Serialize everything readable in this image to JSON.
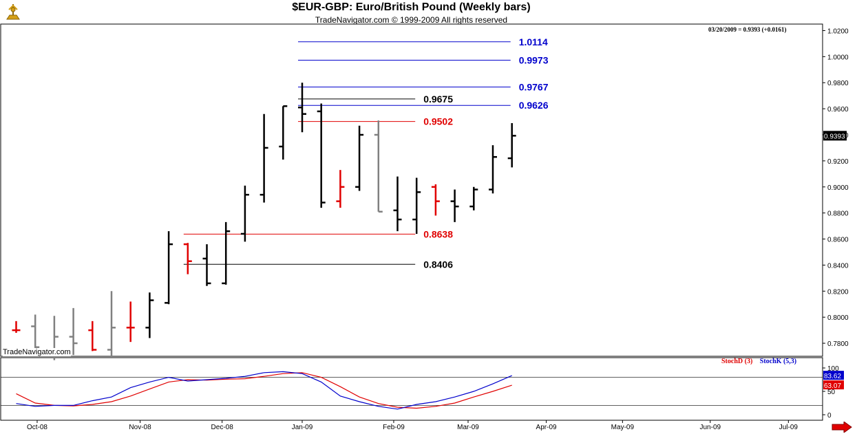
{
  "header": {
    "title": "$EUR-GBP:  Euro/British Pound  (Weekly bars)",
    "subtitle": "TradeNavigator.com © 1999-2009 All rights reserved",
    "quote": "03/20/2009 = 0.9393 (+0.0161)",
    "watermark": "TradeNavigator.com"
  },
  "colors": {
    "up": "#000000",
    "down": "#e00000",
    "neutral": "#808080",
    "blue": "#0000cc",
    "red": "#e00000",
    "black": "#000000"
  },
  "chart_data": [
    {
      "type": "bar",
      "name": "price",
      "ylim": [
        0.77,
        1.025
      ],
      "yticks": [
        "1.0200",
        "1.0000",
        "0.9800",
        "0.9600",
        "0.9400",
        "0.9200",
        "0.9000",
        "0.8800",
        "0.8600",
        "0.8400",
        "0.8200",
        "0.8000",
        "0.7800"
      ],
      "last_label": "0.9393",
      "bars": [
        {
          "h": 0.797,
          "l": 0.788,
          "o": 0.79,
          "c": 0.79,
          "col": "down"
        },
        {
          "h": 0.802,
          "l": 0.772,
          "o": 0.793,
          "c": 0.777,
          "col": "neutral"
        },
        {
          "h": 0.801,
          "l": 0.767,
          "o": 0.772,
          "c": 0.785,
          "col": "neutral"
        },
        {
          "h": 0.807,
          "l": 0.771,
          "o": 0.785,
          "c": 0.78,
          "col": "neutral"
        },
        {
          "h": 0.797,
          "l": 0.774,
          "o": 0.79,
          "c": 0.775,
          "col": "down"
        },
        {
          "h": 0.82,
          "l": 0.77,
          "o": 0.775,
          "c": 0.792,
          "col": "neutral"
        },
        {
          "h": 0.812,
          "l": 0.781,
          "o": 0.792,
          "c": 0.792,
          "col": "down"
        },
        {
          "h": 0.819,
          "l": 0.784,
          "o": 0.792,
          "c": 0.813,
          "col": "up"
        },
        {
          "h": 0.866,
          "l": 0.81,
          "o": 0.811,
          "c": 0.856,
          "col": "up"
        },
        {
          "h": 0.857,
          "l": 0.833,
          "o": 0.856,
          "c": 0.843,
          "col": "down"
        },
        {
          "h": 0.856,
          "l": 0.824,
          "o": 0.845,
          "c": 0.826,
          "col": "up"
        },
        {
          "h": 0.873,
          "l": 0.825,
          "o": 0.826,
          "c": 0.866,
          "col": "up"
        },
        {
          "h": 0.901,
          "l": 0.858,
          "o": 0.864,
          "c": 0.894,
          "col": "up"
        },
        {
          "h": 0.956,
          "l": 0.888,
          "o": 0.894,
          "c": 0.93,
          "col": "up"
        },
        {
          "h": 0.962,
          "l": 0.921,
          "o": 0.931,
          "c": 0.962,
          "col": "up"
        },
        {
          "h": 0.98,
          "l": 0.942,
          "o": 0.961,
          "c": 0.956,
          "col": "up"
        },
        {
          "h": 0.964,
          "l": 0.884,
          "o": 0.958,
          "c": 0.888,
          "col": "up"
        },
        {
          "h": 0.913,
          "l": 0.884,
          "o": 0.889,
          "c": 0.9,
          "col": "down"
        },
        {
          "h": 0.947,
          "l": 0.897,
          "o": 0.9,
          "c": 0.94,
          "col": "up"
        },
        {
          "h": 0.951,
          "l": 0.881,
          "o": 0.94,
          "c": 0.881,
          "col": "neutral"
        },
        {
          "h": 0.908,
          "l": 0.866,
          "o": 0.882,
          "c": 0.875,
          "col": "up"
        },
        {
          "h": 0.907,
          "l": 0.864,
          "o": 0.875,
          "c": 0.896,
          "col": "up"
        },
        {
          "h": 0.902,
          "l": 0.878,
          "o": 0.9,
          "c": 0.889,
          "col": "down"
        },
        {
          "h": 0.898,
          "l": 0.873,
          "o": 0.889,
          "c": 0.885,
          "col": "up"
        },
        {
          "h": 0.9,
          "l": 0.882,
          "o": 0.885,
          "c": 0.898,
          "col": "up"
        },
        {
          "h": 0.932,
          "l": 0.895,
          "o": 0.898,
          "c": 0.923,
          "col": "up"
        },
        {
          "h": 0.949,
          "l": 0.915,
          "o": 0.922,
          "c": 0.9393,
          "col": "up"
        }
      ],
      "levels": [
        {
          "value": "1.0114",
          "v": 1.0114,
          "from_bar": 15.0,
          "to_bar": 26.0,
          "line": "blue",
          "label_col": "blue"
        },
        {
          "value": "0.9973",
          "v": 0.9973,
          "from_bar": 15.0,
          "to_bar": 26.0,
          "line": "blue",
          "label_col": "blue"
        },
        {
          "value": "0.9767",
          "v": 0.9767,
          "from_bar": 15.0,
          "to_bar": 26.0,
          "line": "blue",
          "label_col": "blue"
        },
        {
          "value": "0.9675",
          "v": 0.9675,
          "from_bar": 15.0,
          "to_bar": 21.0,
          "line": "black",
          "label_col": "black"
        },
        {
          "value": "0.9626",
          "v": 0.9626,
          "from_bar": 15.0,
          "to_bar": 26.0,
          "line": "blue",
          "label_col": "blue"
        },
        {
          "value": "0.9502",
          "v": 0.9502,
          "from_bar": 15.0,
          "to_bar": 21.0,
          "line": "red",
          "label_col": "red"
        },
        {
          "value": "0.8638",
          "v": 0.8638,
          "from_bar": 9.0,
          "to_bar": 21.0,
          "line": "red",
          "label_col": "red"
        },
        {
          "value": "0.8406",
          "v": 0.8406,
          "from_bar": 9.0,
          "to_bar": 21.0,
          "line": "black",
          "label_col": "black"
        }
      ]
    },
    {
      "type": "line",
      "name": "stochastics",
      "ylim": [
        0,
        110
      ],
      "yticks": [
        "100",
        "50",
        "0"
      ],
      "reference_lines": [
        80,
        20
      ],
      "legend": [
        "StochD (3)",
        "StochK (5,3)"
      ],
      "series": [
        {
          "name": "StochD (3)",
          "color": "red",
          "last": "63.07",
          "values": [
            45,
            25,
            20,
            19,
            22,
            28,
            40,
            55,
            70,
            75,
            74,
            76,
            77,
            82,
            88,
            90,
            80,
            60,
            38,
            24,
            16,
            14,
            18,
            25,
            38,
            50,
            63.07
          ]
        },
        {
          "name": "StochK (5,3)",
          "color": "blue",
          "last": "83.62",
          "values": [
            24,
            18,
            20,
            20,
            30,
            38,
            58,
            70,
            80,
            72,
            75,
            78,
            82,
            90,
            92,
            88,
            70,
            40,
            28,
            18,
            12,
            22,
            28,
            38,
            50,
            66,
            83.62
          ]
        }
      ]
    }
  ],
  "x_axis": {
    "labels": [
      "Oct-08",
      "Nov-08",
      "Dec-08",
      "Jan-09",
      "Feb-09",
      "Mar-09",
      "Apr-09",
      "May-09",
      "Jun-09",
      "Jul-09"
    ],
    "label_bar_positions": [
      1.1,
      6.5,
      10.8,
      15.0,
      19.8,
      23.7,
      27.8,
      31.8,
      36.4,
      40.5
    ]
  }
}
